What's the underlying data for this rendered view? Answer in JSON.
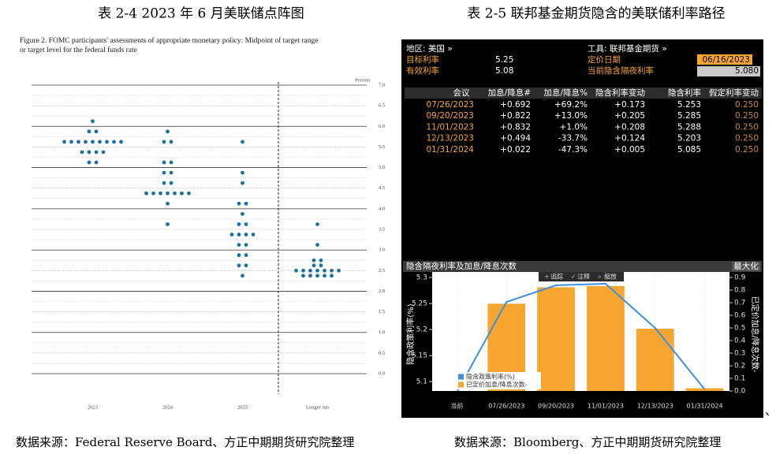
{
  "captions": {
    "left_title": "表 2-4 2023 年 6 月美联储点阵图",
    "right_title": "表 2-5 联邦基金期货隐含的美联储利率路径",
    "left_source": "数据来源：Federal Reserve Board、方正中期期货研究院整理",
    "right_source": "数据来源：Bloomberg、方正中期期货研究院整理"
  },
  "chart_data": [
    {
      "type": "dot",
      "title": "Figure 2. FOMC participants' assessments of appropriate monetary policy: Midpoint of target range",
      "subtitle": "or target level for the federal funds rate",
      "y_label": "Percent",
      "categories": [
        "2023",
        "2024",
        "2025",
        "Longer run"
      ],
      "dots": [
        [
          {
            "value": 6.125,
            "count": 1
          },
          {
            "value": 5.875,
            "count": 2
          },
          {
            "value": 5.625,
            "count": 9
          },
          {
            "value": 5.375,
            "count": 4
          },
          {
            "value": 5.125,
            "count": 2
          }
        ],
        [
          {
            "value": 5.875,
            "count": 1
          },
          {
            "value": 5.625,
            "count": 2
          },
          {
            "value": 5.125,
            "count": 2
          },
          {
            "value": 4.875,
            "count": 2
          },
          {
            "value": 4.625,
            "count": 2
          },
          {
            "value": 4.375,
            "count": 7
          },
          {
            "value": 4.125,
            "count": 1
          },
          {
            "value": 3.625,
            "count": 1
          }
        ],
        [
          {
            "value": 5.625,
            "count": 1
          },
          {
            "value": 4.875,
            "count": 1
          },
          {
            "value": 4.625,
            "count": 1
          },
          {
            "value": 4.125,
            "count": 2
          },
          {
            "value": 3.875,
            "count": 1
          },
          {
            "value": 3.625,
            "count": 2
          },
          {
            "value": 3.375,
            "count": 4
          },
          {
            "value": 3.125,
            "count": 2
          },
          {
            "value": 2.875,
            "count": 2
          },
          {
            "value": 2.625,
            "count": 2
          },
          {
            "value": 2.375,
            "count": 1
          }
        ],
        [
          {
            "value": 3.625,
            "count": 1
          },
          {
            "value": 3.125,
            "count": 1
          },
          {
            "value": 2.75,
            "count": 2
          },
          {
            "value": 2.625,
            "count": 2
          },
          {
            "value": 2.5,
            "count": 7
          },
          {
            "value": 2.375,
            "count": 5
          }
        ]
      ],
      "color": "#1f6e9c",
      "ylim": [
        0,
        7
      ],
      "yticks": [
        {
          "value": 0,
          "label": "0.0"
        },
        0.5,
        {
          "value": 1,
          "label": "1.0"
        },
        1.5,
        {
          "value": 2,
          "label": "2.0"
        },
        2.5,
        {
          "value": 3,
          "label": "3.0"
        },
        3.5,
        {
          "value": 4,
          "label": "4.0"
        },
        4.5,
        {
          "value": 5,
          "label": "5.0"
        },
        5.5,
        {
          "value": 6,
          "label": "6.0"
        },
        6.5,
        {
          "value": 7,
          "label": "7.0"
        }
      ]
    },
    {
      "type": "bar_line",
      "title": "隐含隔夜利率及加息/降息次数",
      "y_label": "隐含政策利率(%)",
      "y2_label": "已定价加息/降息次数-",
      "categories": [
        "当前",
        "07/26/2023",
        "09/20/2023",
        "11/01/2023",
        "12/13/2023",
        "01/31/2024"
      ],
      "series": [
        {
          "name": "隐含政策利率(%)",
          "type": "line",
          "color": "#3d8fe0",
          "values": [
            5.08,
            5.253,
            5.285,
            5.288,
            5.203,
            5.085
          ]
        },
        {
          "name": "已定价加息/降息次数-",
          "type": "bar",
          "axis": "y2",
          "color": "#f6a530",
          "values": [
            null,
            0.692,
            0.822,
            0.832,
            0.494,
            0.022
          ]
        }
      ],
      "ylim": [
        5.082,
        5.3
      ],
      "yticks": [
        5.1,
        5.15,
        5.2,
        5.25,
        5.3
      ],
      "y2lim": [
        0,
        0.9
      ],
      "y2ticks": [
        {
          "value": 0,
          "label": "0.0"
        },
        0.1,
        0.2,
        0.3,
        0.4,
        0.5,
        0.6,
        0.7,
        0.8,
        0.9
      ]
    }
  ],
  "terminal": {
    "region": "地区: 美国 »",
    "instrument": "工具: 联邦基金期货 »",
    "target_rate_label": "目标利率",
    "target_rate": "5.25",
    "effective_rate_label": "有效利率",
    "effective_rate": "5.08",
    "pricing_date_label": "定价日期",
    "pricing_date": "06/16/2023",
    "implied_overnight_label": "当前隐含隔夜利率",
    "implied_overnight": "5.080",
    "maximize": "最大化",
    "toolbar": [
      "追踪",
      "注释",
      "缩放"
    ]
  },
  "table": {
    "columns": [
      "会议",
      "加息/降息#",
      "加息/降息%",
      "隐含利率变动",
      "隐含利率",
      "假定利率变动"
    ],
    "rows": [
      [
        "07/26/2023",
        "+0.692",
        "+69.2%",
        "+0.173",
        "5.253",
        "0.250"
      ],
      [
        "09/20/2023",
        "+0.822",
        "+13.0%",
        "+0.205",
        "5.285",
        "0.250"
      ],
      [
        "11/01/2023",
        "+0.832",
        "+1.0%",
        "+0.208",
        "5.288",
        "0.250"
      ],
      [
        "12/13/2023",
        "+0.494",
        "-33.7%",
        "+0.124",
        "5.203",
        "0.250"
      ],
      [
        "01/31/2024",
        "+0.022",
        "-47.3%",
        "+0.005",
        "5.085",
        "0.250"
      ]
    ]
  },
  "stray_mark": "、"
}
